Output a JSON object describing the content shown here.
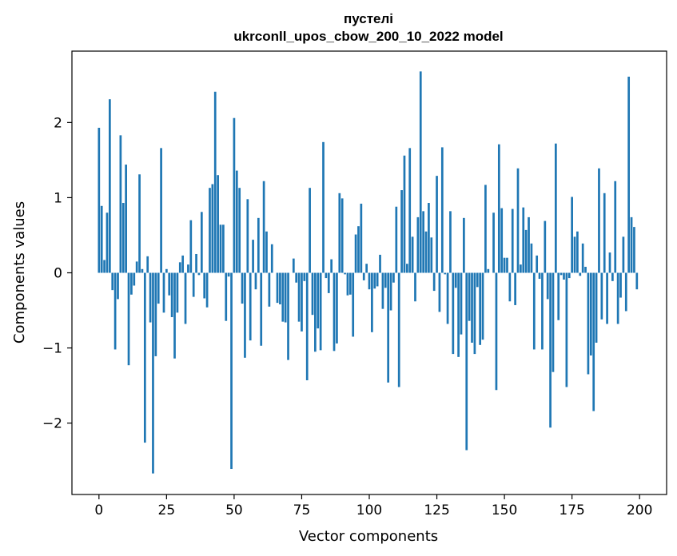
{
  "chart_data": {
    "type": "bar",
    "title": "пустелі",
    "subtitle": "ukrconll_upos_cbow_200_10_2022 model",
    "xlabel": "Vector components",
    "ylabel": "Components values",
    "xlim": [
      -10,
      210
    ],
    "ylim": [
      -2.95,
      2.95
    ],
    "xticks": [
      0,
      25,
      50,
      75,
      100,
      125,
      150,
      175,
      200
    ],
    "yticks": [
      -2,
      -1,
      0,
      1,
      2
    ],
    "ytick_labels": [
      "−2",
      "−1",
      "0",
      "1",
      "2"
    ],
    "grid": false,
    "bar_color": "#1f77b4",
    "series": [
      {
        "values": [
          1.93,
          0.89,
          0.17,
          0.8,
          2.31,
          -0.23,
          -1.02,
          -0.35,
          1.83,
          0.93,
          1.44,
          -1.23,
          -0.29,
          -0.17,
          0.15,
          1.31,
          0.05,
          -2.26,
          0.22,
          -0.66,
          -2.67,
          -1.11,
          -0.41,
          1.66,
          -0.53,
          0.05,
          -0.3,
          -0.59,
          -1.14,
          -0.53,
          0.14,
          0.23,
          -0.68,
          0.11,
          0.7,
          -0.32,
          0.25,
          -0.03,
          0.81,
          -0.34,
          -0.46,
          1.13,
          1.18,
          2.41,
          1.3,
          0.64,
          0.64,
          -0.64,
          -0.05,
          -2.61,
          2.06,
          1.36,
          1.13,
          -0.41,
          -1.13,
          0.98,
          -0.9,
          0.44,
          -0.22,
          0.73,
          -0.97,
          1.22,
          0.55,
          -0.45,
          0.38,
          0.0,
          -0.4,
          -0.42,
          -0.65,
          -0.66,
          -1.16,
          0.0,
          0.19,
          -0.13,
          -0.65,
          -0.78,
          -0.11,
          -1.43,
          1.13,
          -0.56,
          -1.05,
          -0.74,
          -1.03,
          1.74,
          -0.07,
          -0.27,
          0.18,
          -1.04,
          -0.94,
          1.06,
          0.99,
          -0.02,
          -0.3,
          -0.29,
          -0.85,
          0.51,
          0.62,
          0.92,
          -0.1,
          0.12,
          -0.22,
          -0.79,
          -0.21,
          -0.18,
          0.24,
          -0.48,
          -0.2,
          -1.46,
          -0.5,
          -0.13,
          0.88,
          -1.52,
          1.1,
          1.56,
          0.12,
          1.66,
          0.48,
          -0.38,
          0.74,
          2.68,
          0.82,
          0.55,
          0.93,
          0.47,
          -0.24,
          1.29,
          -0.52,
          1.67,
          -0.02,
          -0.68,
          0.82,
          -1.08,
          -0.2,
          -1.12,
          -0.82,
          0.73,
          -2.36,
          -0.64,
          -0.93,
          -1.08,
          -0.19,
          -0.96,
          -0.89,
          1.17,
          0.05,
          0.0,
          0.8,
          -1.56,
          1.71,
          0.86,
          0.2,
          0.2,
          -0.38,
          0.85,
          -0.43,
          1.39,
          0.11,
          0.87,
          0.57,
          0.74,
          0.39,
          -1.02,
          0.23,
          -0.08,
          -1.02,
          0.69,
          -0.35,
          -2.06,
          -1.32,
          1.72,
          -0.63,
          -0.03,
          -0.09,
          -1.52,
          -0.07,
          1.01,
          0.48,
          0.55,
          -0.04,
          0.39,
          0.08,
          -1.35,
          -1.1,
          -1.84,
          -0.93,
          1.39,
          -0.62,
          1.06,
          -0.68,
          0.27,
          -0.11,
          1.22,
          -0.68,
          -0.33,
          0.48,
          -0.51,
          2.61,
          0.74,
          0.61,
          -0.22
        ]
      }
    ]
  }
}
